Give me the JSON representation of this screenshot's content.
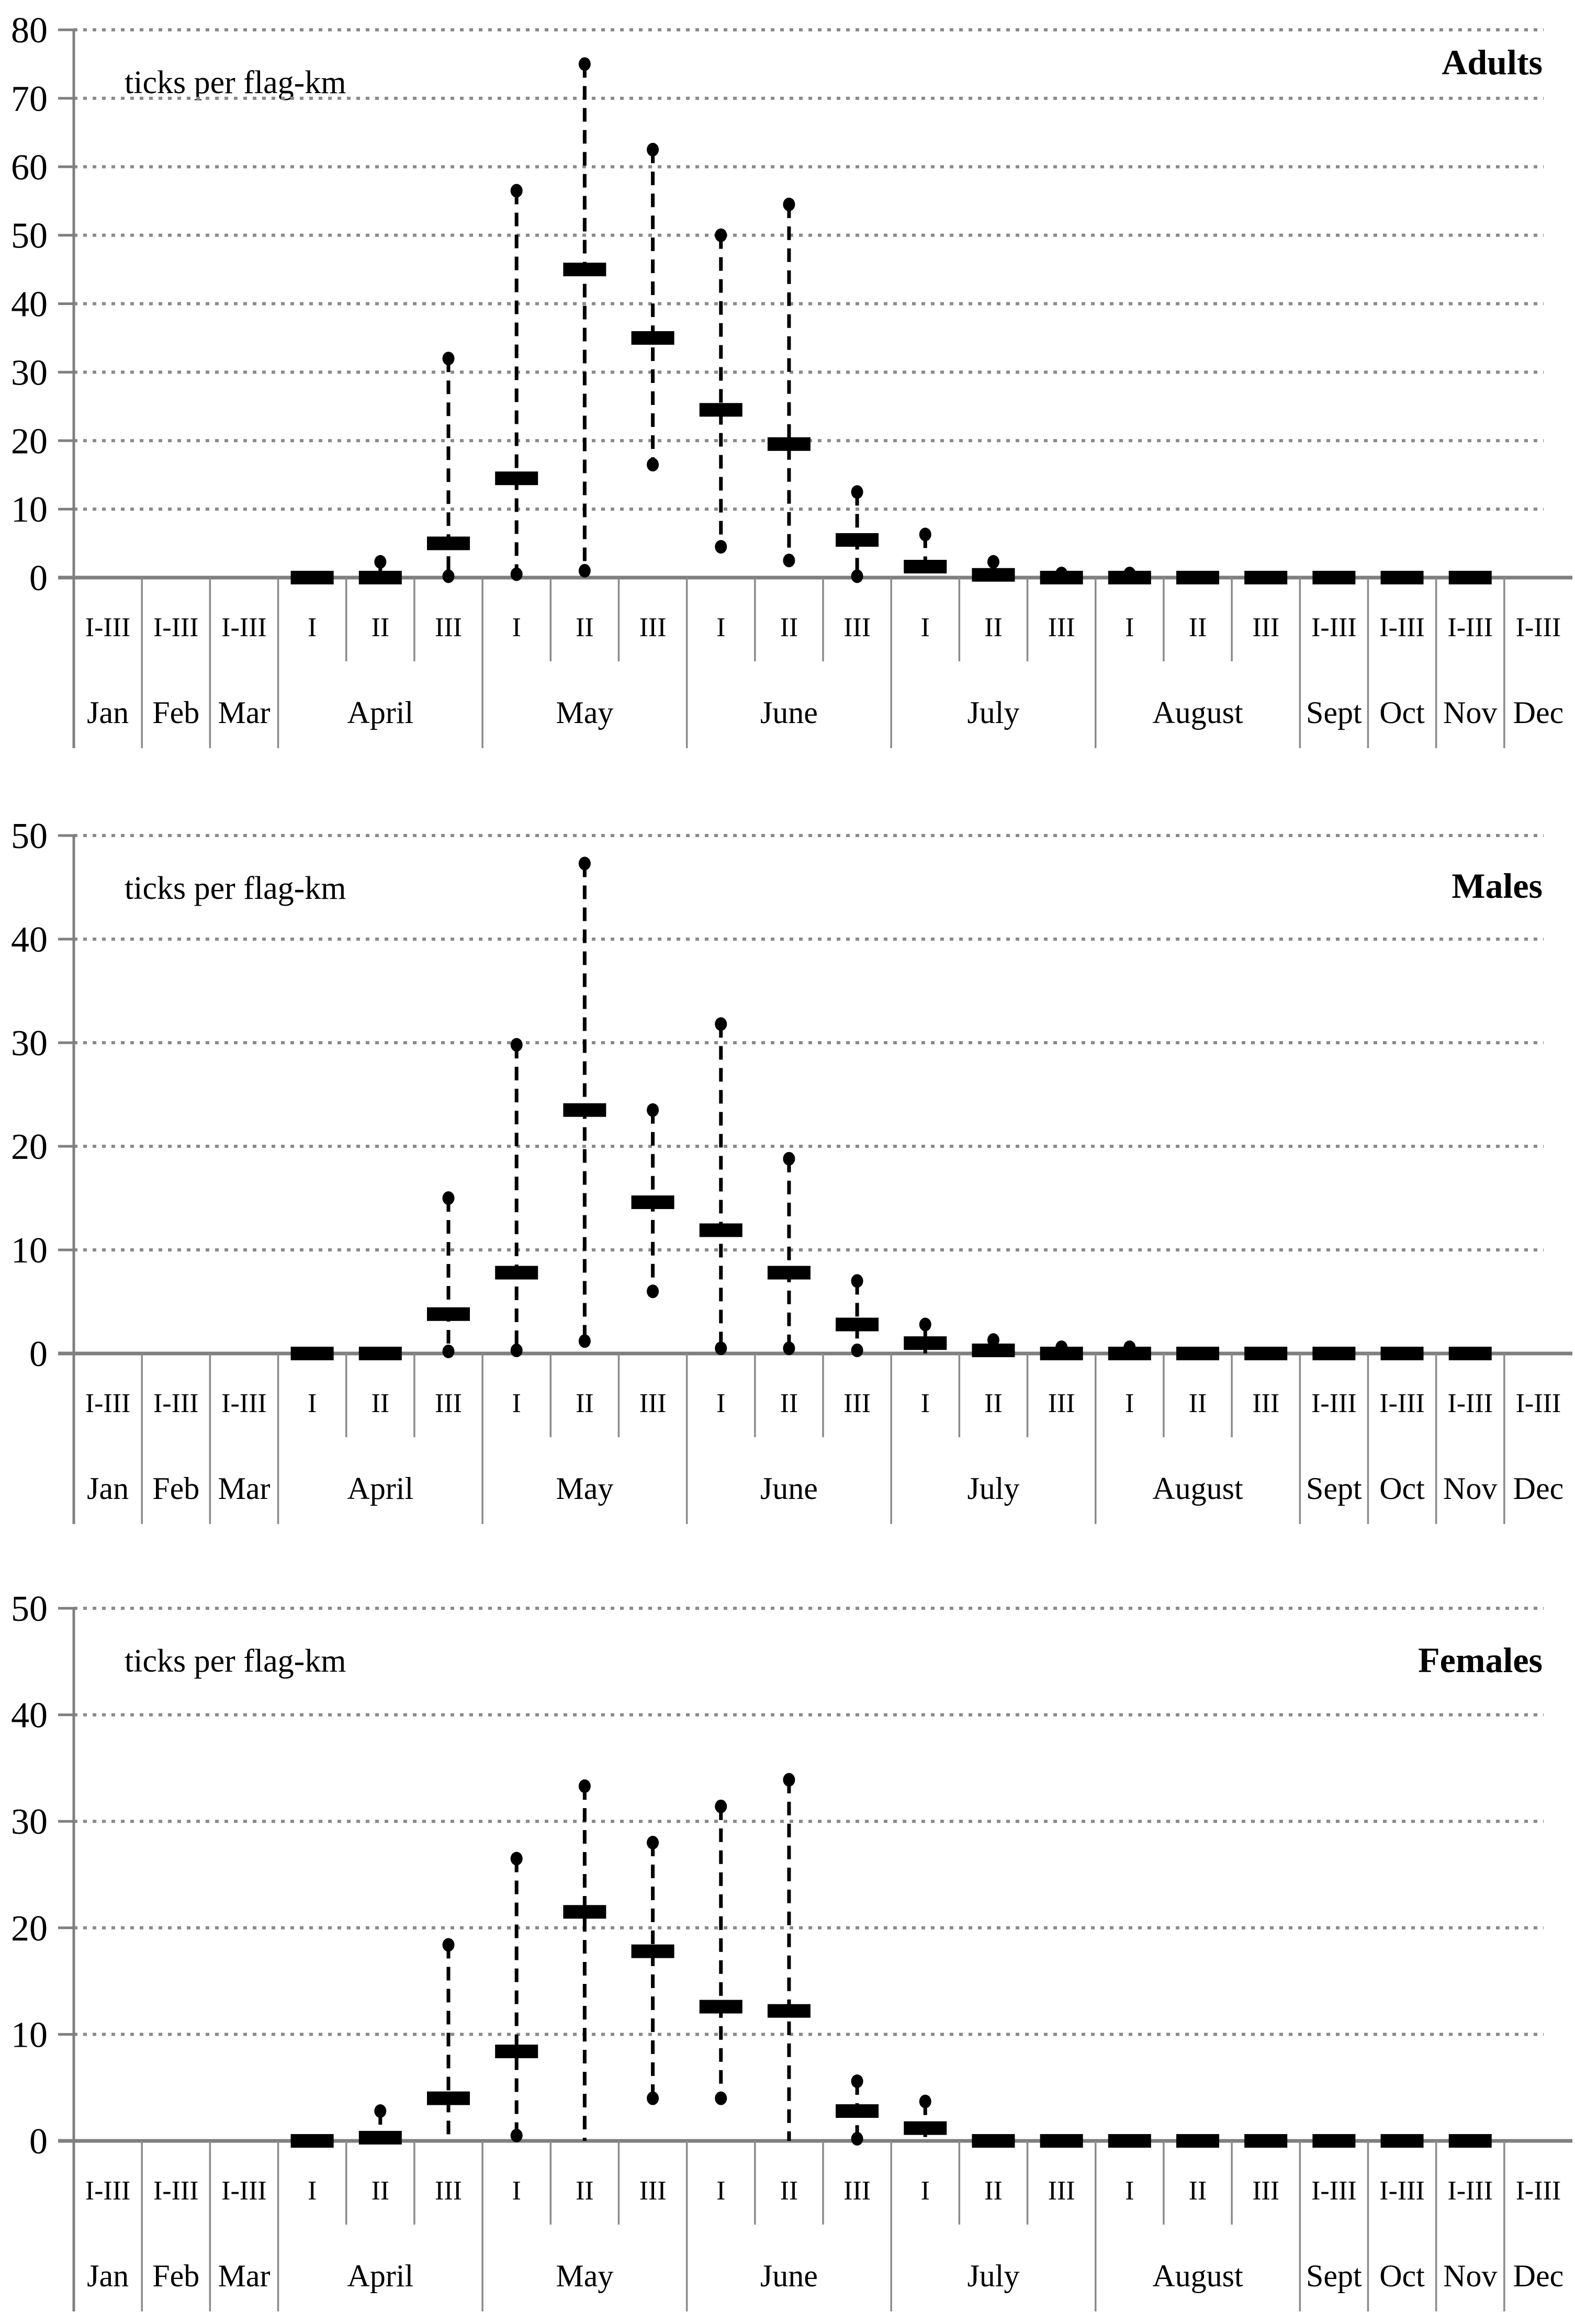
{
  "colors": {
    "text": "#000000",
    "grid": "#8a8a8a",
    "axis": "#7f7f7f",
    "marks": "#000000"
  },
  "chart_data": [
    {
      "type": "boxplot",
      "panel": "top",
      "title": "Adults",
      "unit_label": "ticks per flag-km",
      "ylim": [
        0,
        80
      ],
      "yticks": [
        0,
        10,
        20,
        30,
        40,
        50,
        60,
        70,
        80
      ],
      "grid": "horizontal-dotted",
      "legend": "none",
      "months": [
        {
          "label": "Jan",
          "decades": [
            "I-III"
          ]
        },
        {
          "label": "Feb",
          "decades": [
            "I-III"
          ]
        },
        {
          "label": "Mar",
          "decades": [
            "I-III"
          ]
        },
        {
          "label": "April",
          "decades": [
            "I",
            "II",
            "III"
          ]
        },
        {
          "label": "May",
          "decades": [
            "I",
            "II",
            "III"
          ]
        },
        {
          "label": "June",
          "decades": [
            "I",
            "II",
            "III"
          ]
        },
        {
          "label": "July",
          "decades": [
            "I",
            "II",
            "III"
          ]
        },
        {
          "label": "August",
          "decades": [
            "I",
            "II",
            "III"
          ]
        },
        {
          "label": "Sept",
          "decades": [
            "I-III"
          ]
        },
        {
          "label": "Oct",
          "decades": [
            "I-III"
          ]
        },
        {
          "label": "Nov",
          "decades": [
            "I-III"
          ]
        },
        {
          "label": "Dec",
          "decades": [
            "I-III"
          ]
        }
      ],
      "categories": [
        "Jan I-III",
        "Feb I-III",
        "Mar I-III",
        "April I",
        "April II",
        "April III",
        "May I",
        "May II",
        "May III",
        "June I",
        "June II",
        "June III",
        "July I",
        "July II",
        "July III",
        "August I",
        "August II",
        "August III",
        "Sept I-III",
        "Oct I-III",
        "Nov I-III",
        "Dec I-III"
      ],
      "values": [
        null,
        null,
        null,
        {
          "median": 0
        },
        {
          "median": 0,
          "min": 0,
          "max": 2.3
        },
        {
          "median": 5,
          "min": 0.2,
          "max": 32
        },
        {
          "median": 14.5,
          "min": 0.5,
          "max": 56.5
        },
        {
          "median": 45,
          "min": 1,
          "max": 75
        },
        {
          "median": 35,
          "min": 16.5,
          "max": 62.5
        },
        {
          "median": 24.5,
          "min": 4.5,
          "max": 50
        },
        {
          "median": 19.5,
          "min": 2.5,
          "max": 54.5
        },
        {
          "median": 5.5,
          "min": 0.2,
          "max": 12.5
        },
        {
          "median": 1.6,
          "min": 0,
          "max": 6.3
        },
        {
          "median": 0.4,
          "min": 0,
          "max": 2.3
        },
        {
          "median": 0,
          "min": 0,
          "max": 0.6
        },
        {
          "median": 0,
          "min": 0,
          "max": 0.6
        },
        {
          "median": 0
        },
        {
          "median": 0
        },
        {
          "median": 0
        },
        {
          "median": 0
        },
        {
          "median": 0
        },
        null
      ]
    },
    {
      "type": "boxplot",
      "panel": "middle",
      "title": "Males",
      "unit_label": "ticks per flag-km",
      "ylim": [
        0,
        50
      ],
      "yticks": [
        0,
        10,
        20,
        30,
        40,
        50
      ],
      "grid": "horizontal-dotted",
      "legend": "none",
      "months": [
        {
          "label": "Jan",
          "decades": [
            "I-III"
          ]
        },
        {
          "label": "Feb",
          "decades": [
            "I-III"
          ]
        },
        {
          "label": "Mar",
          "decades": [
            "I-III"
          ]
        },
        {
          "label": "April",
          "decades": [
            "I",
            "II",
            "III"
          ]
        },
        {
          "label": "May",
          "decades": [
            "I",
            "II",
            "III"
          ]
        },
        {
          "label": "June",
          "decades": [
            "I",
            "II",
            "III"
          ]
        },
        {
          "label": "July",
          "decades": [
            "I",
            "II",
            "III"
          ]
        },
        {
          "label": "August",
          "decades": [
            "I",
            "II",
            "III"
          ]
        },
        {
          "label": "Sept",
          "decades": [
            "I-III"
          ]
        },
        {
          "label": "Oct",
          "decades": [
            "I-III"
          ]
        },
        {
          "label": "Nov",
          "decades": [
            "I-III"
          ]
        },
        {
          "label": "Dec",
          "decades": [
            "I-III"
          ]
        }
      ],
      "categories": [
        "Jan I-III",
        "Feb I-III",
        "Mar I-III",
        "April I",
        "April II",
        "April III",
        "May I",
        "May II",
        "May III",
        "June I",
        "June II",
        "June III",
        "July I",
        "July II",
        "July III",
        "August I",
        "August II",
        "August III",
        "Sept I-III",
        "Oct I-III",
        "Nov I-III",
        "Dec I-III"
      ],
      "values": [
        null,
        null,
        null,
        {
          "median": 0
        },
        {
          "median": 0
        },
        {
          "median": 3.8,
          "min": 0.2,
          "max": 15
        },
        {
          "median": 7.8,
          "min": 0.3,
          "max": 29.8
        },
        {
          "median": 23.5,
          "min": 1.2,
          "max": 47.3
        },
        {
          "median": 14.6,
          "min": 6,
          "max": 23.5
        },
        {
          "median": 11.9,
          "min": 0.5,
          "max": 31.8
        },
        {
          "median": 7.8,
          "min": 0.5,
          "max": 18.8
        },
        {
          "median": 2.8,
          "min": 0.3,
          "max": 7
        },
        {
          "median": 1,
          "min": 0,
          "max": 2.8
        },
        {
          "median": 0.3,
          "min": 0,
          "max": 1.3
        },
        {
          "median": 0,
          "min": 0,
          "max": 0.6
        },
        {
          "median": 0,
          "min": 0,
          "max": 0.6
        },
        {
          "median": 0
        },
        {
          "median": 0
        },
        {
          "median": 0
        },
        {
          "median": 0
        },
        {
          "median": 0
        },
        null
      ]
    },
    {
      "type": "boxplot",
      "panel": "bottom",
      "title": "Females",
      "unit_label": "ticks per flag-km",
      "ylim": [
        0,
        50
      ],
      "yticks": [
        0,
        10,
        20,
        30,
        40,
        50
      ],
      "grid": "horizontal-dotted",
      "legend": "none",
      "months": [
        {
          "label": "Jan",
          "decades": [
            "I-III"
          ]
        },
        {
          "label": "Feb",
          "decades": [
            "I-III"
          ]
        },
        {
          "label": "Mar",
          "decades": [
            "I-III"
          ]
        },
        {
          "label": "April",
          "decades": [
            "I",
            "II",
            "III"
          ]
        },
        {
          "label": "May",
          "decades": [
            "I",
            "II",
            "III"
          ]
        },
        {
          "label": "June",
          "decades": [
            "I",
            "II",
            "III"
          ]
        },
        {
          "label": "July",
          "decades": [
            "I",
            "II",
            "III"
          ]
        },
        {
          "label": "August",
          "decades": [
            "I",
            "II",
            "III"
          ]
        },
        {
          "label": "Sept",
          "decades": [
            "I-III"
          ]
        },
        {
          "label": "Oct",
          "decades": [
            "I-III"
          ]
        },
        {
          "label": "Nov",
          "decades": [
            "I-III"
          ]
        },
        {
          "label": "Dec",
          "decades": [
            "I-III"
          ]
        }
      ],
      "categories": [
        "Jan I-III",
        "Feb I-III",
        "Mar I-III",
        "April I",
        "April II",
        "April III",
        "May I",
        "May II",
        "May III",
        "June I",
        "June II",
        "June III",
        "July I",
        "July II",
        "July III",
        "August I",
        "August II",
        "August III",
        "Sept I-III",
        "Oct I-III",
        "Nov I-III",
        "Dec I-III"
      ],
      "values": [
        null,
        null,
        null,
        {
          "median": 0
        },
        {
          "median": 0.3,
          "min": 0,
          "max": 2.8
        },
        {
          "median": 4,
          "min": 0,
          "max": 18.4
        },
        {
          "median": 8.4,
          "min": 0.5,
          "max": 26.5
        },
        {
          "median": 21.5,
          "min": 0,
          "max": 33.3
        },
        {
          "median": 17.8,
          "min": 4,
          "max": 28
        },
        {
          "median": 12.6,
          "min": 4,
          "max": 31.4
        },
        {
          "median": 12.2,
          "min": 0,
          "max": 33.9
        },
        {
          "median": 2.8,
          "min": 0.2,
          "max": 5.6
        },
        {
          "median": 1.2,
          "min": 0,
          "max": 3.7
        },
        {
          "median": 0
        },
        {
          "median": 0
        },
        {
          "median": 0
        },
        {
          "median": 0
        },
        {
          "median": 0
        },
        {
          "median": 0
        },
        {
          "median": 0
        },
        {
          "median": 0
        },
        null
      ]
    }
  ]
}
